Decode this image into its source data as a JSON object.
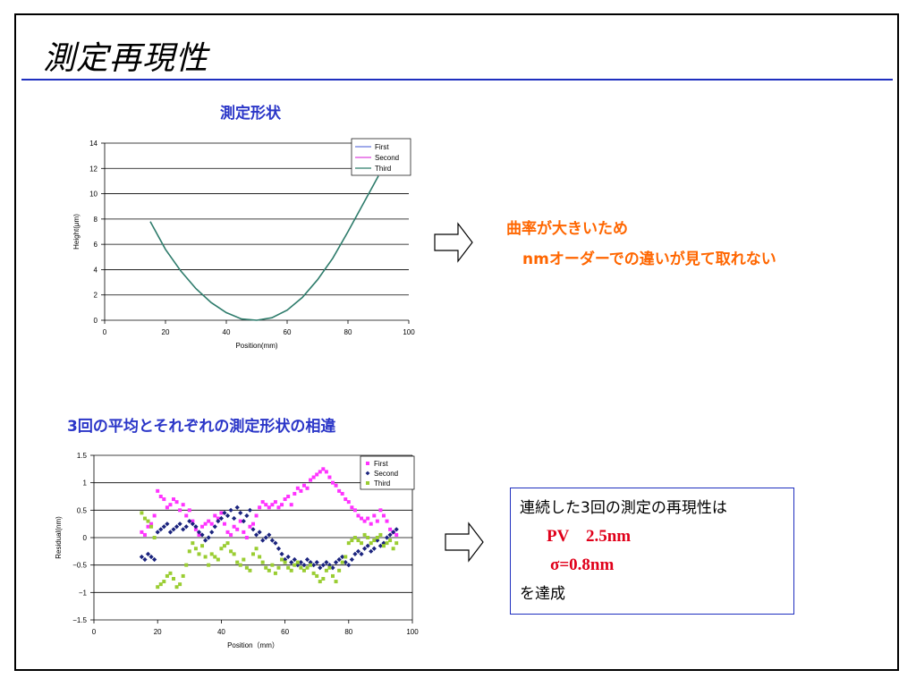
{
  "slide": {
    "title": "測定再現性"
  },
  "section1": {
    "heading": "測定形状"
  },
  "section2": {
    "heading": "3回の平均とそれぞれの測定形状の相違"
  },
  "note1": {
    "line1": "曲率が大きいため",
    "line2": "nmオーダーでの違いが見て取れない"
  },
  "result": {
    "line1": "連続した3回の測定の再現性は",
    "pv": "PV　2.5nm",
    "sigma": "σ=0.8nm",
    "line4": "を達成"
  },
  "colors": {
    "title_rule": "#1f2fbf",
    "heading": "#2b36c8",
    "note": "#ff6600",
    "result_value": "#e0001a",
    "first": "#ff33ff",
    "second": "#1a237e",
    "third": "#9acd32",
    "line_first": "#6677dd",
    "line_second": "#dd44dd",
    "line_third": "#2e7d6b"
  },
  "chart_data": [
    {
      "type": "line",
      "title": "",
      "xlabel": "Position(mm)",
      "ylabel": "Height(μm)",
      "xlim": [
        0,
        100
      ],
      "ylim": [
        0,
        14
      ],
      "xticks": [
        0,
        20,
        40,
        60,
        80,
        100
      ],
      "yticks": [
        0,
        2,
        4,
        6,
        8,
        10,
        12,
        14
      ],
      "grid": "horizontal",
      "legend_position": "top-right",
      "x": [
        15,
        20,
        25,
        30,
        35,
        40,
        45,
        50,
        55,
        60,
        65,
        70,
        75,
        80,
        85,
        90
      ],
      "series": [
        {
          "name": "First",
          "values": [
            7.8,
            5.6,
            3.9,
            2.5,
            1.4,
            0.6,
            0.1,
            0.0,
            0.2,
            0.8,
            1.8,
            3.2,
            4.9,
            7.0,
            9.2,
            11.4
          ]
        },
        {
          "name": "Second",
          "values": [
            7.8,
            5.6,
            3.9,
            2.5,
            1.4,
            0.6,
            0.1,
            0.0,
            0.2,
            0.8,
            1.8,
            3.2,
            4.9,
            7.0,
            9.2,
            11.4
          ]
        },
        {
          "name": "Third",
          "values": [
            7.8,
            5.6,
            3.9,
            2.5,
            1.4,
            0.6,
            0.1,
            0.0,
            0.2,
            0.8,
            1.8,
            3.2,
            4.9,
            7.0,
            9.2,
            11.4
          ]
        }
      ]
    },
    {
      "type": "scatter",
      "title": "",
      "xlabel": "Position（mm）",
      "ylabel": "Residual(nm)",
      "xlim": [
        0,
        100
      ],
      "ylim": [
        -1.5,
        1.5
      ],
      "xticks": [
        0,
        20,
        40,
        60,
        80,
        100
      ],
      "yticks": [
        -1.5,
        -1,
        -0.5,
        0,
        0.5,
        1,
        1.5
      ],
      "grid": "horizontal",
      "legend_position": "top-right",
      "x": [
        15,
        16,
        17,
        18,
        19,
        20,
        21,
        22,
        23,
        24,
        25,
        26,
        27,
        28,
        29,
        30,
        31,
        32,
        33,
        34,
        35,
        36,
        37,
        38,
        39,
        40,
        41,
        42,
        43,
        44,
        45,
        46,
        47,
        48,
        49,
        50,
        51,
        52,
        53,
        54,
        55,
        56,
        57,
        58,
        59,
        60,
        61,
        62,
        63,
        64,
        65,
        66,
        67,
        68,
        69,
        70,
        71,
        72,
        73,
        74,
        75,
        76,
        77,
        78,
        79,
        80,
        81,
        82,
        83,
        84,
        85,
        86,
        87,
        88,
        89,
        90,
        91,
        92,
        93,
        94,
        95
      ],
      "series": [
        {
          "name": "First",
          "values": [
            0.1,
            0.05,
            0.2,
            0.25,
            0.4,
            0.85,
            0.75,
            0.7,
            0.55,
            0.6,
            0.7,
            0.65,
            0.5,
            0.6,
            0.4,
            0.5,
            0.3,
            0.15,
            0.05,
            0.2,
            0.25,
            0.3,
            0.25,
            0.4,
            0.35,
            0.45,
            0.25,
            0.1,
            0.05,
            0.2,
            0.15,
            0.3,
            0.1,
            0.0,
            0.2,
            0.25,
            0.4,
            0.55,
            0.65,
            0.6,
            0.55,
            0.6,
            0.65,
            0.55,
            0.6,
            0.7,
            0.75,
            0.6,
            0.8,
            0.9,
            0.85,
            0.95,
            0.9,
            1.05,
            1.1,
            1.15,
            1.2,
            1.25,
            1.2,
            1.1,
            1.0,
            0.95,
            0.85,
            0.8,
            0.7,
            0.65,
            0.55,
            0.5,
            0.4,
            0.35,
            0.3,
            0.35,
            0.25,
            0.4,
            0.3,
            0.5,
            0.4,
            0.3,
            0.15,
            0.1,
            0.05
          ]
        },
        {
          "name": "Second",
          "values": [
            -0.35,
            -0.4,
            -0.3,
            -0.35,
            -0.4,
            0.1,
            0.15,
            0.2,
            0.25,
            0.1,
            0.15,
            0.2,
            0.25,
            0.15,
            0.2,
            0.3,
            0.25,
            0.2,
            0.1,
            0.05,
            -0.05,
            0.0,
            0.1,
            0.2,
            0.3,
            0.35,
            0.45,
            0.4,
            0.5,
            0.35,
            0.55,
            0.45,
            0.3,
            0.4,
            0.5,
            0.15,
            0.05,
            0.1,
            -0.05,
            0.0,
            0.05,
            -0.05,
            -0.1,
            -0.2,
            -0.3,
            -0.4,
            -0.35,
            -0.45,
            -0.4,
            -0.5,
            -0.45,
            -0.5,
            -0.4,
            -0.45,
            -0.5,
            -0.45,
            -0.55,
            -0.5,
            -0.45,
            -0.5,
            -0.55,
            -0.45,
            -0.4,
            -0.35,
            -0.45,
            -0.5,
            -0.4,
            -0.3,
            -0.25,
            -0.3,
            -0.2,
            -0.15,
            -0.25,
            -0.2,
            -0.05,
            -0.15,
            -0.1,
            0.0,
            0.05,
            0.1,
            0.15
          ]
        },
        {
          "name": "Third",
          "values": [
            0.45,
            0.35,
            0.3,
            0.2,
            0.0,
            -0.9,
            -0.85,
            -0.8,
            -0.7,
            -0.65,
            -0.75,
            -0.9,
            -0.85,
            -0.7,
            -0.5,
            -0.25,
            -0.1,
            -0.2,
            -0.3,
            -0.15,
            -0.35,
            -0.5,
            -0.3,
            -0.35,
            -0.4,
            -0.2,
            -0.15,
            -0.1,
            -0.25,
            -0.3,
            -0.45,
            -0.5,
            -0.4,
            -0.55,
            -0.6,
            -0.3,
            -0.2,
            -0.35,
            -0.45,
            -0.55,
            -0.6,
            -0.5,
            -0.65,
            -0.55,
            -0.4,
            -0.45,
            -0.55,
            -0.6,
            -0.5,
            -0.45,
            -0.55,
            -0.6,
            -0.55,
            -0.5,
            -0.65,
            -0.7,
            -0.8,
            -0.75,
            -0.6,
            -0.55,
            -0.7,
            -0.8,
            -0.6,
            -0.45,
            -0.35,
            -0.1,
            -0.05,
            0.0,
            -0.05,
            -0.1,
            0.05,
            0.0,
            -0.1,
            -0.05,
            0.0,
            0.05,
            -0.15,
            -0.1,
            -0.05,
            -0.2,
            -0.1
          ]
        }
      ]
    }
  ]
}
